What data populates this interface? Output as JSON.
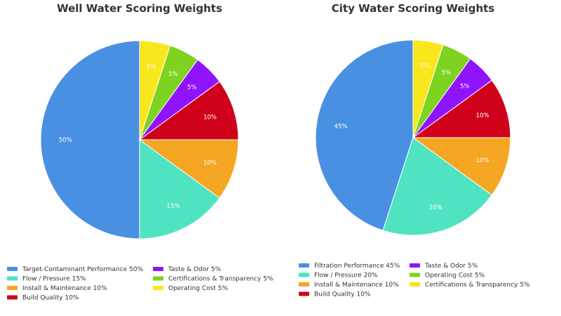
{
  "chart_data": [
    {
      "type": "pie",
      "title": "Well Water Scoring Weights",
      "legend_position": "bottom",
      "slices": [
        {
          "label": "Target-Contaminant Performance",
          "value": 50,
          "value_label": "50%",
          "legend": "Target-Contaminant Performance 50%",
          "color": "#4a90e2"
        },
        {
          "label": "Flow / Pressure",
          "value": 15,
          "value_label": "15%",
          "legend": "Flow / Pressure 15%",
          "color": "#50e3c2"
        },
        {
          "label": "Install & Maintenance",
          "value": 10,
          "value_label": "10%",
          "legend": "Install & Maintenance 10%",
          "color": "#f5a623"
        },
        {
          "label": "Build Quality",
          "value": 10,
          "value_label": "10%",
          "legend": "Build Quality 10%",
          "color": "#d0021b"
        },
        {
          "label": "Taste & Odor",
          "value": 5,
          "value_label": "5%",
          "legend": "Taste & Odor 5%",
          "color": "#9013fe"
        },
        {
          "label": "Certifications & Transparency",
          "value": 5,
          "value_label": "5%",
          "legend": "Certifications & Transparency 5%",
          "color": "#7ed321"
        },
        {
          "label": "Operating Cost",
          "value": 5,
          "value_label": "5%",
          "legend": "Operating Cost 5%",
          "color": "#f8e71c"
        }
      ]
    },
    {
      "type": "pie",
      "title": "City Water Scoring Weights",
      "legend_position": "bottom",
      "slices": [
        {
          "label": "Filtration Performance",
          "value": 45,
          "value_label": "45%",
          "legend": "Filtration Performance 45%",
          "color": "#4a90e2"
        },
        {
          "label": "Flow / Pressure",
          "value": 20,
          "value_label": "20%",
          "legend": "Flow / Pressure 20%",
          "color": "#50e3c2"
        },
        {
          "label": "Install & Maintenance",
          "value": 10,
          "value_label": "10%",
          "legend": "Install & Maintenance 10%",
          "color": "#f5a623"
        },
        {
          "label": "Build Quality",
          "value": 10,
          "value_label": "10%",
          "legend": "Build Quality 10%",
          "color": "#d0021b"
        },
        {
          "label": "Taste & Odor",
          "value": 5,
          "value_label": "5%",
          "legend": "Taste & Odor 5%",
          "color": "#9013fe"
        },
        {
          "label": "Operating Cost",
          "value": 5,
          "value_label": "5%",
          "legend": "Operating Cost 5%",
          "color": "#7ed321"
        },
        {
          "label": "Certifications & Transparency",
          "value": 5,
          "value_label": "5%",
          "legend": "Certifications & Transparency 5%",
          "color": "#f8e71c"
        }
      ]
    }
  ]
}
